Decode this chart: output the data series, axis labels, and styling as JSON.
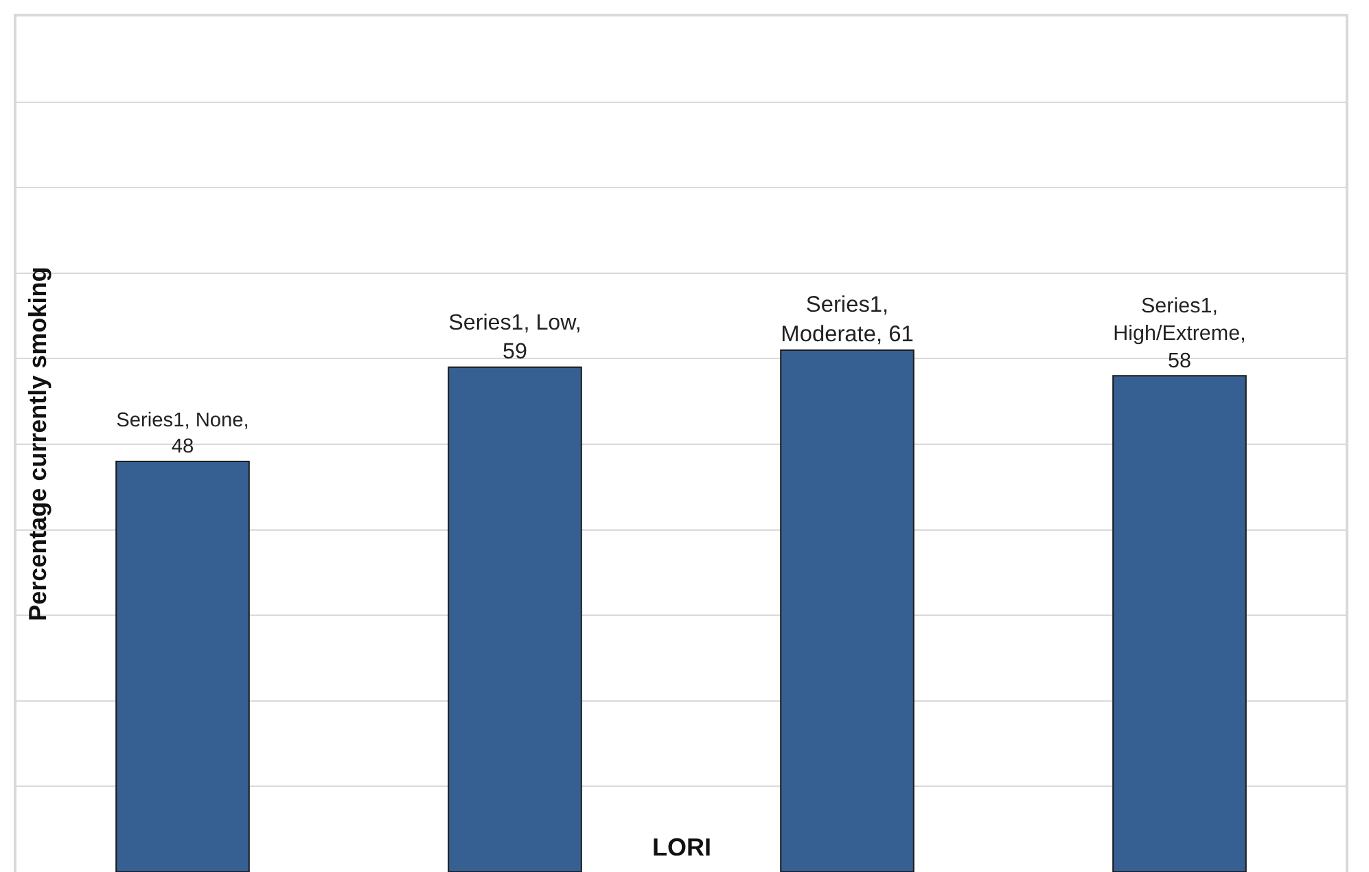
{
  "chart_data": {
    "type": "bar",
    "xlabel": "LORI",
    "ylabel": "Percentage currently smoking",
    "categories": [
      null,
      null,
      null,
      null
    ],
    "values": [
      48,
      59,
      61,
      58
    ],
    "value_labels": [
      "Series1, None,\n48",
      "Series1, Low,\n59",
      "Series1,\nModerate, 61",
      "Series1,\nHigh/Extreme,\n58"
    ],
    "color": "#376092",
    "ylim": [
      0,
      100
    ],
    "yticks": [
      {
        "value": 10,
        "label": null
      },
      {
        "value": 20,
        "label": null
      },
      {
        "value": 30,
        "label": null
      },
      {
        "value": 40,
        "label": null
      },
      {
        "value": 50,
        "label": null
      },
      {
        "value": 60,
        "label": null
      },
      {
        "value": 70,
        "label": null
      },
      {
        "value": 80,
        "label": null
      },
      {
        "value": 90,
        "label": null
      }
    ],
    "grid": "y",
    "legend": false
  }
}
